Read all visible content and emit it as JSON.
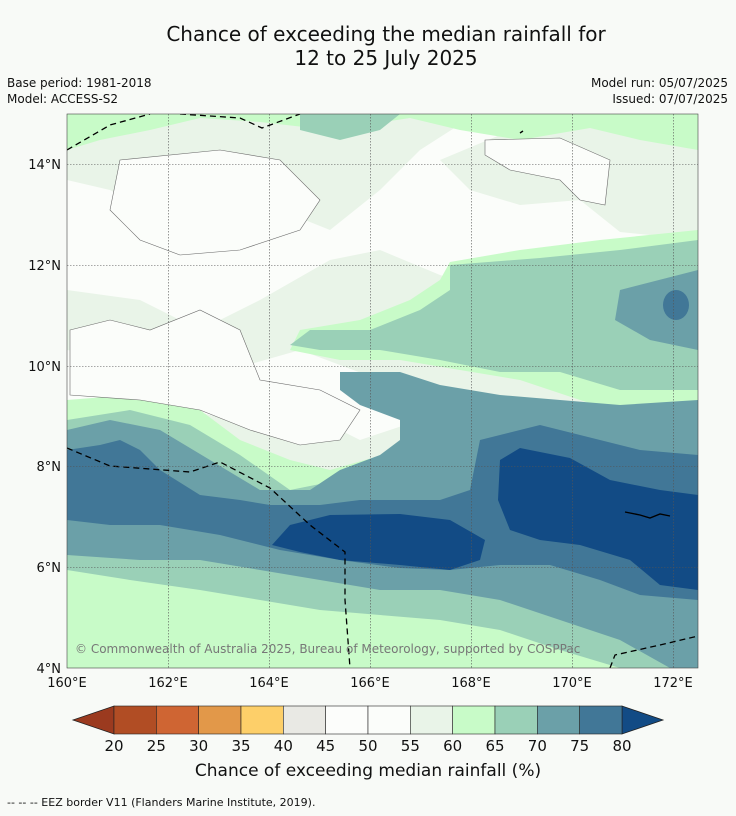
{
  "title": {
    "line1": "Chance of exceeding the median rainfall for",
    "line2": "12 to 25 July 2025"
  },
  "meta": {
    "base_period": "Base period: 1981-2018",
    "model": "Model: ACCESS-S2",
    "model_run": "Model run: 05/07/2025",
    "issued": "Issued: 07/07/2025"
  },
  "map": {
    "lat_labels": [
      "14°N",
      "12°N",
      "10°N",
      "8°N",
      "6°N",
      "4°N"
    ],
    "lon_labels": [
      "160°E",
      "162°E",
      "164°E",
      "166°E",
      "168°E",
      "170°E",
      "172°E"
    ],
    "copyright": "© Commonwealth of Australia 2025, Bureau of Meteorology, supported by COSPPac"
  },
  "colorbar": {
    "title": "Chance of exceeding median rainfall (%)",
    "ticks": [
      "20",
      "25",
      "30",
      "35",
      "40",
      "45",
      "50",
      "55",
      "60",
      "65",
      "70",
      "75",
      "80"
    ],
    "colors": [
      "#b14d24",
      "#cf6533",
      "#e29849",
      "#fdcf69",
      "#e9e9e4",
      "#fcfdfb",
      "#fbfdfa",
      "#e9f4e8",
      "#c8fbc8",
      "#9ad0b7",
      "#6ba0a8",
      "#417797"
    ],
    "low_extend_color": "#9b3a1f",
    "high_extend_color": "#124b85"
  },
  "footer": {
    "legend": "--  --  -- EEZ border V11 (Flanders Marine Institute, 2019)."
  }
}
